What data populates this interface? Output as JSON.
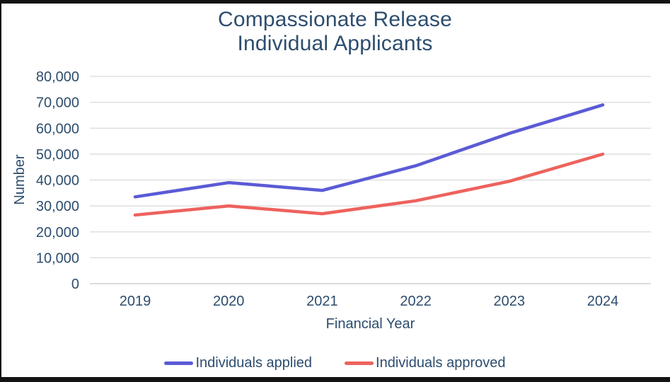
{
  "title": {
    "line1": "Compassionate Release",
    "line2": "Individual Applicants",
    "color": "#2d4d6e"
  },
  "colors": {
    "text": "#2d4d6e",
    "gridline": "#dadada",
    "baseline": "#c6c6c6",
    "frame": "#131313",
    "background": "#ffffff"
  },
  "chart_data": {
    "type": "line",
    "categories": [
      "2019",
      "2020",
      "2021",
      "2022",
      "2023",
      "2024"
    ],
    "series": [
      {
        "name": "Individuals applied",
        "color": "#5b5bd6",
        "values": [
          33500,
          39000,
          36000,
          45500,
          58000,
          69000
        ]
      },
      {
        "name": "Individuals approved",
        "color": "#ee625d",
        "values": [
          26500,
          30000,
          27000,
          32000,
          39500,
          50000
        ]
      }
    ],
    "title": "Compassionate Release Individual Applicants",
    "xlabel": "Financial Year",
    "ylabel": "Number",
    "ylim": [
      0,
      80000
    ],
    "y_tick_step": 10000,
    "y_tick_labels": [
      "0",
      "10,000",
      "20,000",
      "30,000",
      "40,000",
      "50,000",
      "60,000",
      "70,000",
      "80,000"
    ],
    "grid": "horizontal",
    "legend_position": "bottom"
  }
}
